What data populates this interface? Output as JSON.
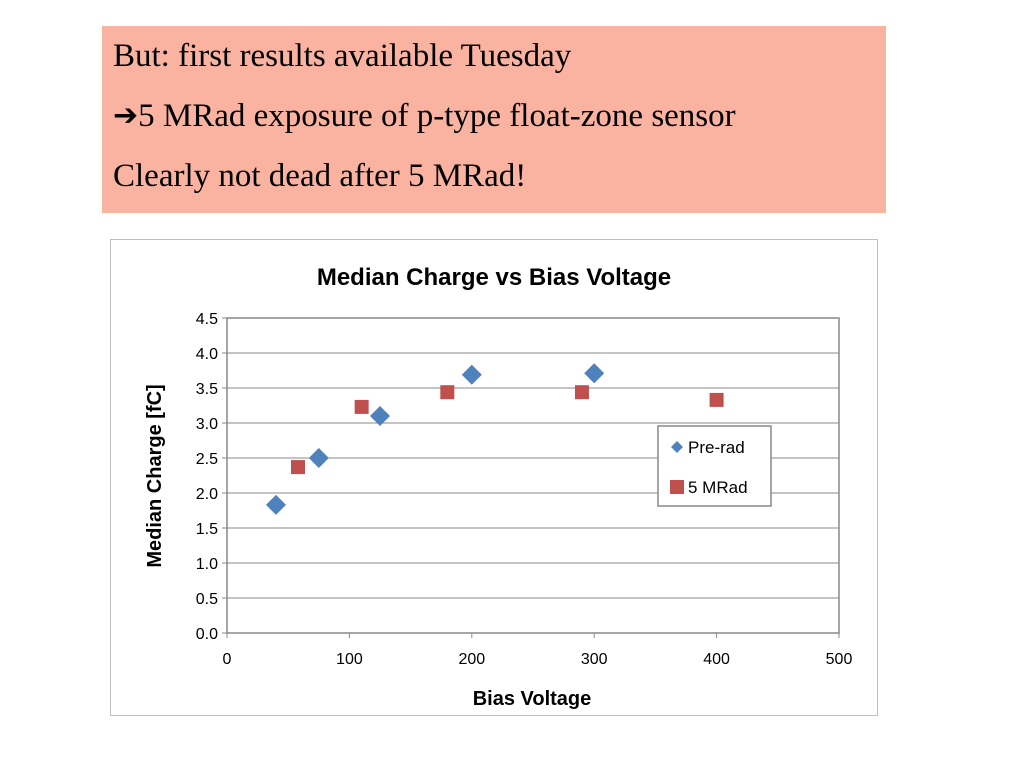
{
  "callout": {
    "lines": [
      "But: first results available Tuesday",
      "5 MRad exposure of p-type float-zone sensor",
      "Clearly not dead after 5 MRad!"
    ],
    "arrow_icon": "right-arrow-icon",
    "background": "#fbb3a1"
  },
  "chart_data": {
    "type": "scatter",
    "title": "Median Charge vs Bias Voltage",
    "xlabel": "Bias Voltage",
    "ylabel": "Median Charge [fC]",
    "xlim": [
      0,
      500
    ],
    "ylim": [
      0,
      4.5
    ],
    "xticks": [
      "0",
      "100",
      "200",
      "300",
      "400",
      "500"
    ],
    "yticks": [
      "0.0",
      "0.5",
      "1.0",
      "1.5",
      "2.0",
      "2.5",
      "3.0",
      "3.5",
      "4.0",
      "4.5"
    ],
    "grid": true,
    "legend_position": "right",
    "series": [
      {
        "name": "Pre-rad",
        "marker": "diamond",
        "color": "#4f81bd",
        "points": [
          [
            40,
            1.83
          ],
          [
            75,
            2.5
          ],
          [
            125,
            3.1
          ],
          [
            200,
            3.69
          ],
          [
            300,
            3.71
          ]
        ]
      },
      {
        "name": "5 MRad",
        "marker": "square",
        "color": "#c0504d",
        "points": [
          [
            58,
            2.37
          ],
          [
            110,
            3.23
          ],
          [
            180,
            3.44
          ],
          [
            290,
            3.44
          ],
          [
            400,
            3.33
          ]
        ]
      }
    ]
  }
}
